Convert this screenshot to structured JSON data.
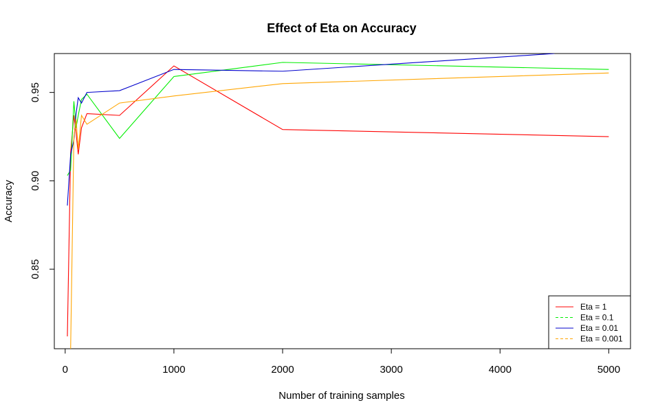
{
  "chart_data": {
    "type": "line",
    "title": "Effect of Eta on Accuracy",
    "xlabel": "Number of training samples",
    "ylabel": "Accuracy",
    "xlim": [
      -100,
      5200
    ],
    "ylim": [
      0.805,
      0.972
    ],
    "xticks": [
      0,
      1000,
      2000,
      3000,
      4000,
      5000
    ],
    "yticks": [
      0.85,
      0.9,
      0.95
    ],
    "ytick_labels": [
      "0.85",
      "0.90",
      "0.95"
    ],
    "legend_position": "bottom-right",
    "series": [
      {
        "name": "Eta = 1",
        "color": "#ff0000",
        "dashed": false,
        "x": [
          20,
          50,
          80,
          100,
          120,
          150,
          200,
          500,
          1000,
          2000,
          5000
        ],
        "y": [
          0.812,
          0.916,
          0.937,
          0.927,
          0.915,
          0.93,
          0.938,
          0.937,
          0.965,
          0.929,
          0.925
        ]
      },
      {
        "name": "Eta = 0.1",
        "color": "#00ee00",
        "dashed": true,
        "x": [
          20,
          50,
          80,
          100,
          120,
          150,
          200,
          500,
          1000,
          2000,
          5000
        ],
        "y": [
          0.903,
          0.906,
          0.945,
          0.93,
          0.937,
          0.946,
          0.949,
          0.924,
          0.959,
          0.967,
          0.963
        ]
      },
      {
        "name": "Eta = 0.01",
        "color": "#0000cc",
        "dashed": false,
        "x": [
          20,
          50,
          80,
          100,
          120,
          150,
          200,
          500,
          1000,
          2000,
          4500
        ],
        "y": [
          0.886,
          0.915,
          0.923,
          0.938,
          0.947,
          0.944,
          0.95,
          0.951,
          0.963,
          0.962,
          0.972
        ]
      },
      {
        "name": "Eta = 0.001",
        "color": "#ffa500",
        "dashed": true,
        "x": [
          50,
          80,
          100,
          120,
          150,
          200,
          500,
          1000,
          2000,
          5000
        ],
        "y": [
          0.805,
          0.925,
          0.935,
          0.918,
          0.937,
          0.932,
          0.944,
          0.948,
          0.955,
          0.961
        ]
      }
    ]
  }
}
